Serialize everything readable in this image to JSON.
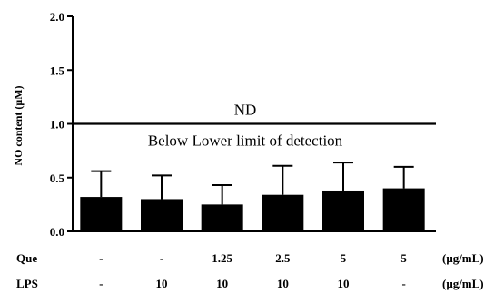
{
  "chart_data": {
    "type": "bar",
    "ylabel": "NO content (μM)",
    "ylim": [
      0.0,
      2.0
    ],
    "yticks": [
      "0.0",
      "0.5",
      "1.0",
      "1.5",
      "2.0"
    ],
    "values": [
      0.32,
      0.3,
      0.25,
      0.34,
      0.38,
      0.4
    ],
    "errors": [
      0.24,
      0.22,
      0.18,
      0.27,
      0.26,
      0.2
    ],
    "color": "#000000",
    "reference_line": {
      "y": 1.0,
      "label_above": "ND",
      "label_below": "Below Lower limit of detection"
    },
    "conditions": [
      {
        "name": "Que",
        "unit": "(μg/mL)",
        "values": [
          "-",
          "-",
          "1.25",
          "2.5",
          "5",
          "5"
        ]
      },
      {
        "name": "LPS",
        "unit": "(μg/mL)",
        "values": [
          "-",
          "10",
          "10",
          "10",
          "10",
          "-"
        ]
      }
    ]
  }
}
